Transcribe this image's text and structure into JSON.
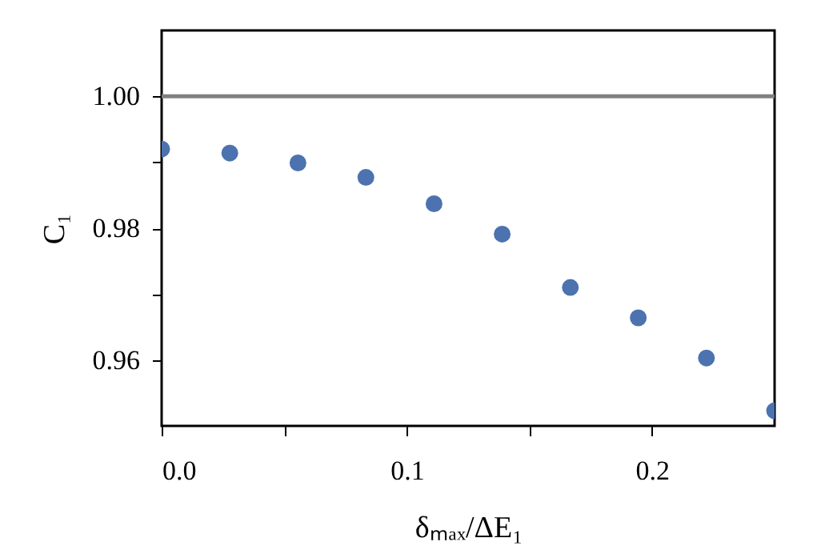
{
  "chart_data": {
    "type": "scatter",
    "xlabel": "δₘₐₓ/ΔE₁",
    "ylabel": "C₁",
    "x": [
      0,
      0.0278,
      0.0556,
      0.0833,
      0.1111,
      0.1389,
      0.1667,
      0.1944,
      0.2222,
      0.25
    ],
    "series": [
      {
        "color": "#4c72b0",
        "values": [
          0.992,
          0.9914,
          0.9899,
          0.9877,
          0.9837,
          0.9791,
          0.971,
          0.9664,
          0.9603,
          0.9523
        ]
      }
    ],
    "xlim": [
      0,
      0.25
    ],
    "ylim": [
      0.95,
      1.01
    ],
    "xticks": [
      {
        "value": 0,
        "label": "0.0"
      },
      {
        "value": 0.05,
        "label": null
      },
      0.1,
      {
        "value": 0.15,
        "label": null
      },
      0.2
    ],
    "yticks": [
      0.96,
      {
        "value": 0.97,
        "label": null
      },
      0.98,
      {
        "value": 0.99,
        "label": null
      },
      {
        "value": 1,
        "label": "1.00"
      }
    ],
    "ref_lines": [
      {
        "axis": "y",
        "value": 1.0,
        "color": "#808080"
      }
    ],
    "marker": "circle",
    "grid": false,
    "legend": false
  }
}
